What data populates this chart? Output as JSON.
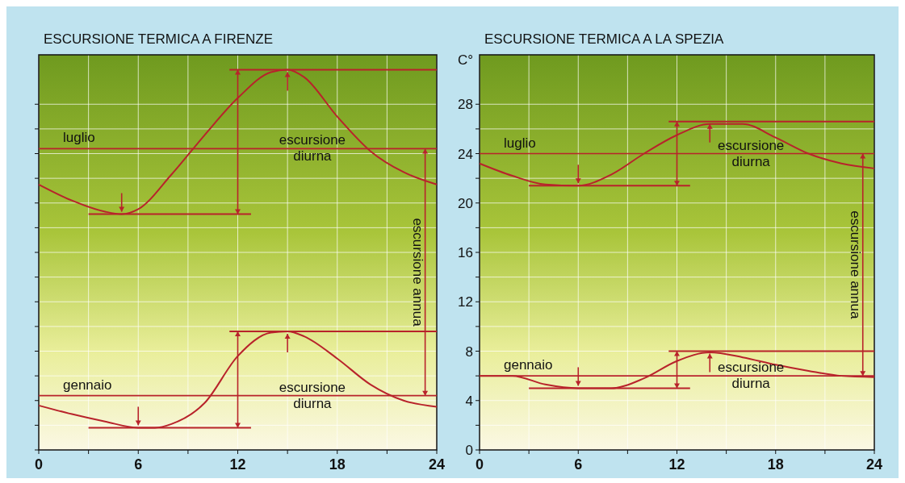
{
  "chart_data": [
    {
      "type": "line",
      "title": "ESCURSIONE TERMICA A FIRENZE",
      "xlim": [
        0,
        24
      ],
      "xticks": [
        0,
        6,
        12,
        18,
        24
      ],
      "ylim": [
        0,
        32
      ],
      "yticks": [
        0,
        4,
        8,
        12,
        16,
        20,
        24,
        28
      ],
      "grid": true,
      "tick_labels": "x",
      "line_style": "solid",
      "marker": "none",
      "series": [
        {
          "color": "#b8232b",
          "x": [
            0,
            2,
            4,
            5,
            6,
            8,
            10,
            12,
            14,
            15,
            16,
            18,
            20,
            22,
            24
          ],
          "values": [
            21.5,
            20.2,
            19.3,
            19.1,
            19.5,
            22.3,
            25.5,
            28.5,
            30.6,
            30.8,
            30.2,
            27,
            24.2,
            22.5,
            21.5
          ]
        },
        {
          "color": "#b8232b",
          "x": [
            0,
            2,
            4,
            6,
            7,
            8,
            10,
            12,
            14,
            15,
            16,
            18,
            20,
            22,
            24
          ],
          "values": [
            3.6,
            2.9,
            2.3,
            1.8,
            1.8,
            2.1,
            3.8,
            7.6,
            9.5,
            9.6,
            9.2,
            7.4,
            5.3,
            4.0,
            3.5
          ]
        },
        {
          "color": "#b8232b",
          "x": [
            11.5,
            24
          ],
          "values": [
            30.8,
            30.8
          ]
        },
        {
          "color": "#b8232b",
          "x": [
            3,
            12.8
          ],
          "values": [
            19.1,
            19.1
          ]
        },
        {
          "color": "#b8232b",
          "x": [
            11.5,
            24
          ],
          "values": [
            9.6,
            9.6
          ]
        },
        {
          "color": "#b8232b",
          "x": [
            3,
            12.8
          ],
          "values": [
            1.8,
            1.8
          ]
        }
      ],
      "ref_lines": [
        {
          "axis": "y",
          "value": 24.4,
          "label": "luglio",
          "color": "#b8232b"
        },
        {
          "axis": "y",
          "value": 4.4,
          "label": "gennaio",
          "color": "#b8232b"
        }
      ],
      "annotations": [
        "escursione diurna",
        "escursione diurna",
        "escursione annua"
      ]
    },
    {
      "type": "line",
      "title": "ESCURSIONE TERMICA A LA SPEZIA",
      "ylabel": "C°",
      "xlim": [
        0,
        24
      ],
      "xticks": [
        0,
        6,
        12,
        18,
        24
      ],
      "ylim": [
        0,
        32
      ],
      "yticks": [
        0,
        4,
        8,
        12,
        16,
        20,
        24,
        28
      ],
      "grid": true,
      "line_style": "solid",
      "marker": "none",
      "series": [
        {
          "color": "#b8232b",
          "x": [
            0,
            2,
            4,
            6,
            8,
            10,
            12,
            14,
            16,
            18,
            20,
            22,
            24
          ],
          "values": [
            23.2,
            22.2,
            21.5,
            21.4,
            22.3,
            24,
            25.5,
            26.4,
            26.4,
            25.3,
            24,
            23.2,
            22.8
          ]
        },
        {
          "color": "#b8232b",
          "x": [
            0,
            2,
            4,
            6,
            8,
            10,
            12,
            14,
            16,
            18,
            20,
            22,
            24
          ],
          "values": [
            6,
            6,
            5.3,
            5.0,
            5.0,
            5.8,
            7.2,
            7.9,
            7.5,
            6.9,
            6.4,
            6,
            5.9
          ]
        },
        {
          "color": "#b8232b",
          "x": [
            11.5,
            24
          ],
          "values": [
            26.6,
            26.6
          ]
        },
        {
          "color": "#b8232b",
          "x": [
            3,
            12.8
          ],
          "values": [
            21.4,
            21.4
          ]
        },
        {
          "color": "#b8232b",
          "x": [
            11.5,
            24
          ],
          "values": [
            8.0,
            8.0
          ]
        },
        {
          "color": "#b8232b",
          "x": [
            3,
            12.8
          ],
          "values": [
            5.0,
            5.0
          ]
        }
      ],
      "ref_lines": [
        {
          "axis": "y",
          "value": 24.0,
          "label": "luglio",
          "color": "#b8232b"
        },
        {
          "axis": "y",
          "value": 6.0,
          "label": "gennaio",
          "color": "#b8232b"
        }
      ],
      "annotations": [
        "escursione diurna",
        "escursione diurna",
        "escursione annua"
      ]
    }
  ]
}
